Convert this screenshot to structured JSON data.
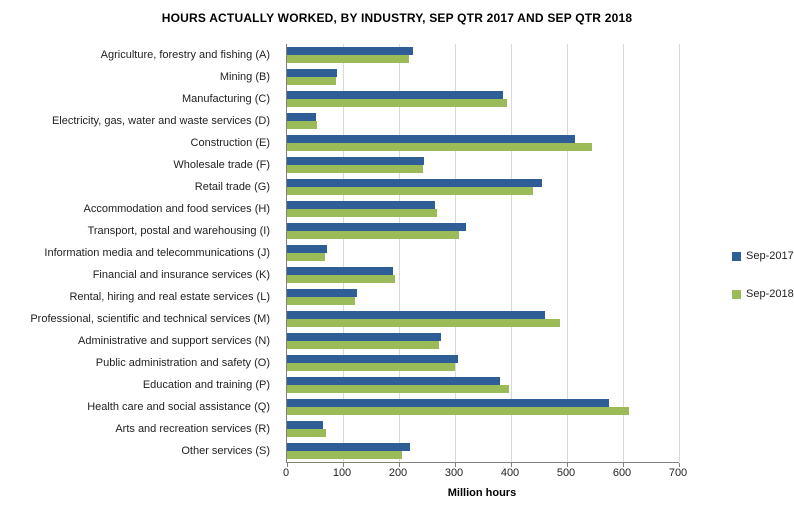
{
  "chart_data": {
    "type": "bar",
    "orientation": "horizontal",
    "title": "HOURS ACTUALLY WORKED, BY INDUSTRY, SEP QTR 2017 AND SEP QTR 2018",
    "xlabel": "Million hours",
    "xlim": [
      0,
      700
    ],
    "xticks": [
      0,
      100,
      200,
      300,
      400,
      500,
      600,
      700
    ],
    "grid": true,
    "legend_position": "right",
    "categories": [
      "Agriculture, forestry and fishing (A)",
      "Mining (B)",
      "Manufacturing (C)",
      "Electricity, gas, water and waste services (D)",
      "Construction (E)",
      "Wholesale trade (F)",
      "Retail trade (G)",
      "Accommodation and food services (H)",
      "Transport, postal and warehousing (I)",
      "Information media and telecommunications (J)",
      "Financial and insurance services (K)",
      "Rental, hiring and real estate services (L)",
      "Professional, scientific and technical services (M)",
      "Administrative and support services (N)",
      "Public administration and safety (O)",
      "Education and training (P)",
      "Health care and social assistance (Q)",
      "Arts and recreation services (R)",
      "Other services (S)"
    ],
    "series": [
      {
        "name": "Sep-2017",
        "color": "#2E5E95",
        "values": [
          225,
          90,
          385,
          52,
          515,
          245,
          455,
          265,
          320,
          72,
          190,
          125,
          460,
          275,
          305,
          380,
          575,
          64,
          220
        ]
      },
      {
        "name": "Sep-2018",
        "color": "#9BBB59",
        "values": [
          218,
          88,
          392,
          54,
          545,
          243,
          440,
          268,
          308,
          67,
          193,
          121,
          487,
          272,
          300,
          396,
          610,
          70,
          205
        ]
      }
    ]
  }
}
